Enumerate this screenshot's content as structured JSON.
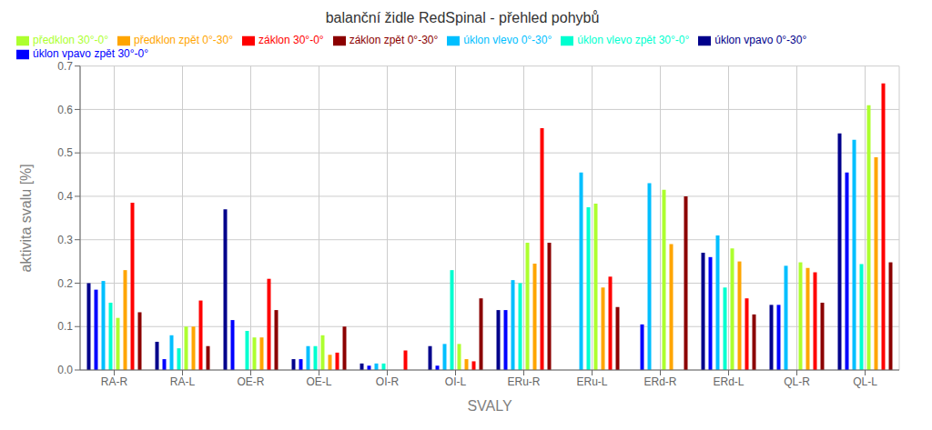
{
  "chart_data": {
    "type": "bar",
    "title": "balanční židle RedSpinal - přehled pohybů",
    "xlabel": "SVALY",
    "ylabel": "aktivita svalu [%]",
    "categories": [
      "RA-R",
      "RA-L",
      "OE-R",
      "OE-L",
      "OI-R",
      "OI-L",
      "ERu-R",
      "ERu-L",
      "ERd-R",
      "ERd-L",
      "QL-R",
      "QL-L"
    ],
    "series": [
      {
        "name": "úklon vpavo 0°-30°",
        "color": "#00008B",
        "values": [
          0.2,
          0.065,
          0.37,
          0.025,
          0.015,
          0.055,
          0.138,
          0.0,
          0.0,
          0.27,
          0.15,
          0.545
        ]
      },
      {
        "name": "úklon vpavo zpět 30°-0°",
        "color": "#0000FF",
        "values": [
          0.185,
          0.025,
          0.115,
          0.025,
          0.01,
          0.01,
          0.138,
          0.0,
          0.105,
          0.26,
          0.15,
          0.455
        ]
      },
      {
        "name": "úklon vlevo 0°-30°",
        "color": "#00BFFF",
        "values": [
          0.205,
          0.08,
          0.0,
          0.055,
          0.015,
          0.06,
          0.207,
          0.455,
          0.43,
          0.31,
          0.24,
          0.53
        ]
      },
      {
        "name": "úklon vlevo zpět 30°-0°",
        "color": "#00FFD0",
        "values": [
          0.155,
          0.05,
          0.09,
          0.055,
          0.015,
          0.23,
          0.2,
          0.375,
          0.0,
          0.19,
          0.0,
          0.244
        ]
      },
      {
        "name": "předklon 30°-0°",
        "color": "#ADFF2F",
        "values": [
          0.12,
          0.1,
          0.075,
          0.08,
          0.0,
          0.06,
          0.293,
          0.383,
          0.415,
          0.28,
          0.248,
          0.61
        ]
      },
      {
        "name": "předklon zpět 0°-30°",
        "color": "#FFA500",
        "values": [
          0.23,
          0.1,
          0.075,
          0.035,
          0.0,
          0.025,
          0.245,
          0.19,
          0.29,
          0.25,
          0.235,
          0.49
        ]
      },
      {
        "name": "záklon 30°-0°",
        "color": "#FF0000",
        "values": [
          0.385,
          0.16,
          0.21,
          0.04,
          0.045,
          0.02,
          0.557,
          0.215,
          0.0,
          0.165,
          0.225,
          0.66
        ]
      },
      {
        "name": "záklon zpět 0°-30°",
        "color": "#8B0000",
        "values": [
          0.133,
          0.055,
          0.138,
          0.1,
          0.0,
          0.165,
          0.293,
          0.145,
          0.4,
          0.128,
          0.155,
          0.248
        ]
      }
    ],
    "ylim": [
      0,
      0.7
    ],
    "yticks": [
      {
        "value": 0,
        "label": "0.0"
      },
      0.1,
      0.2,
      0.3,
      0.4,
      0.5,
      0.6,
      0.7
    ],
    "grid": true,
    "legend": "upper left"
  }
}
